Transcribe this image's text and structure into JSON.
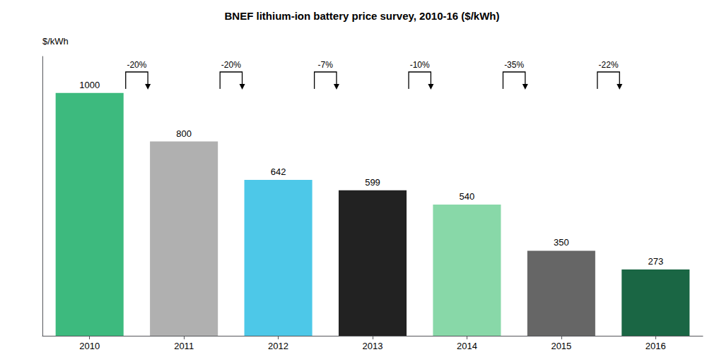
{
  "chart_data": {
    "type": "bar",
    "title": "BNEF lithium-ion battery price survey, 2010-16 ($/kWh)",
    "categories": [
      "2010",
      "2011",
      "2012",
      "2013",
      "2014",
      "2015",
      "2016"
    ],
    "values": [
      1000,
      800,
      642,
      599,
      540,
      350,
      273
    ],
    "colors": [
      "#3dba7e",
      "#b0b0b0",
      "#4dc8e8",
      "#222222",
      "#88d8a8",
      "#666666",
      "#1a6644"
    ],
    "annotations": [
      "-20%",
      "-20%",
      "-7%",
      "-10%",
      "-35%",
      "-22%"
    ],
    "ylabel": "$/kWh",
    "ylim": [
      0,
      1150
    ],
    "grid": false,
    "data_labels": true,
    "tick_labels": "x"
  }
}
